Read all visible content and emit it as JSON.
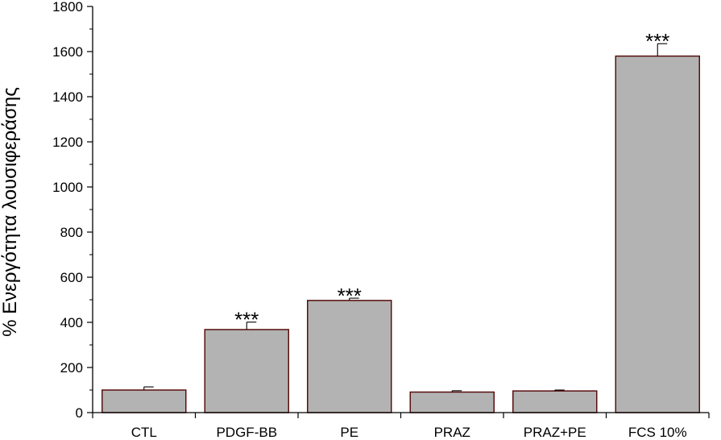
{
  "chart_data": {
    "type": "bar",
    "title": "",
    "xlabel": "",
    "ylabel": "% Ενεργότητα λουσιφεράσης",
    "ylim": [
      0,
      1800
    ],
    "yticks": [
      0,
      200,
      400,
      600,
      800,
      1000,
      1200,
      1400,
      1600,
      1800
    ],
    "grid": false,
    "categories": [
      "CTL",
      "PDGF-BB",
      "PE",
      "PRAZ",
      "PRAZ+PE",
      "FCS 10%"
    ],
    "values": [
      100,
      368,
      497,
      91,
      96,
      1580
    ],
    "errors": [
      14,
      33,
      10,
      6,
      4,
      55
    ],
    "significance": [
      "",
      "***",
      "***",
      "",
      "",
      "***"
    ],
    "colors": {
      "bar_fill": "#b3b3b3",
      "bar_stroke": "#5a0f0f",
      "axis": "#000000"
    }
  }
}
